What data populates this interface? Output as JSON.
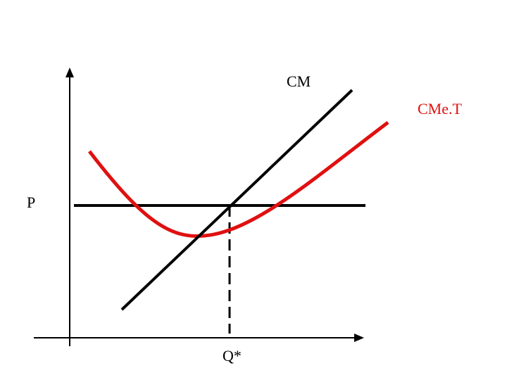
{
  "labels": {
    "marginal_cost": "CM",
    "average_total_cost": "CMe.T",
    "price": "P",
    "quantity": "Q*"
  }
}
